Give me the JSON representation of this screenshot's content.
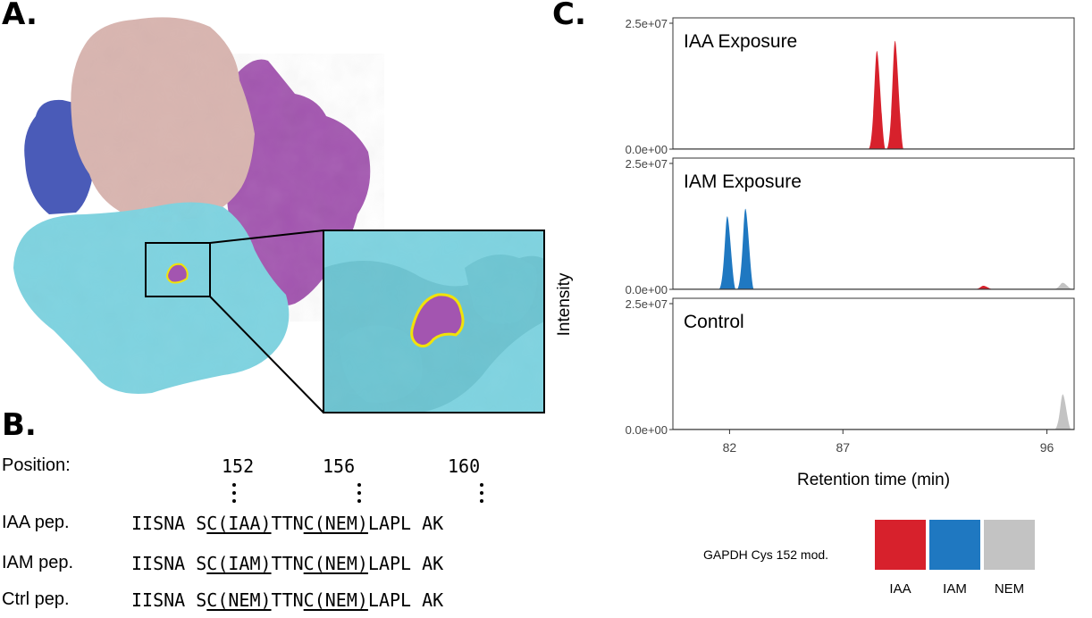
{
  "panels": {
    "a": "A.",
    "b": "B.",
    "c": "C."
  },
  "sequence": {
    "position_label": "Position:",
    "positions": [
      "152",
      "156",
      "160"
    ],
    "rows": [
      {
        "label": "IAA pep.",
        "prefix": "IISNA S",
        "mod1": "C(IAA)",
        "mid": "TTN",
        "mod2": "C(NEM)",
        "suffix": "LAPL AK"
      },
      {
        "label": "IAM pep.",
        "prefix": "IISNA S",
        "mod1": "C(IAM)",
        "mid": "TTN",
        "mod2": "C(NEM)",
        "suffix": "LAPL AK"
      },
      {
        "label": "Ctrl pep.",
        "prefix": "IISNA S",
        "mod1": "C(NEM)",
        "mid": "TTN",
        "mod2": "C(NEM)",
        "suffix": "LAPL AK"
      }
    ]
  },
  "chart_data": {
    "type": "area",
    "ylabel": "Intensity",
    "xlabel": "Retention time (min)",
    "xticks": [
      82,
      87,
      96
    ],
    "xlim": [
      79.5,
      97.2
    ],
    "ylim": [
      0,
      25000000
    ],
    "ytick_labels": [
      "0.0e+00",
      "2.5e+07"
    ],
    "facets": [
      {
        "title": "IAA Exposure",
        "peaks": [
          {
            "series": "IAA",
            "x": 88.5,
            "y": 19500000
          },
          {
            "series": "IAA",
            "x": 89.3,
            "y": 21500000
          }
        ]
      },
      {
        "title": "IAM Exposure",
        "peaks": [
          {
            "series": "IAM",
            "x": 81.9,
            "y": 14500000
          },
          {
            "series": "IAM",
            "x": 82.7,
            "y": 16000000
          },
          {
            "series": "IAA",
            "x": 93.2,
            "y": 700000
          },
          {
            "series": "NEM",
            "x": 96.7,
            "y": 1300000
          }
        ]
      },
      {
        "title": "Control",
        "peaks": [
          {
            "series": "NEM",
            "x": 96.7,
            "y": 7000000
          }
        ]
      }
    ],
    "legend": {
      "title": "GAPDH Cys 152 mod.",
      "position": "bottom",
      "items": [
        {
          "name": "IAA",
          "color": "#d7212c"
        },
        {
          "name": "IAM",
          "color": "#1f78c1"
        },
        {
          "name": "NEM",
          "color": "#c3c3c3"
        }
      ]
    }
  },
  "colors": {
    "cyan_subunit": "#7fd3e0",
    "pink_subunit": "#d8b5b0",
    "purple_subunit": "#a355b0",
    "blue_subunit": "#4a5bb8",
    "pocket_outline": "#f1e20a"
  }
}
